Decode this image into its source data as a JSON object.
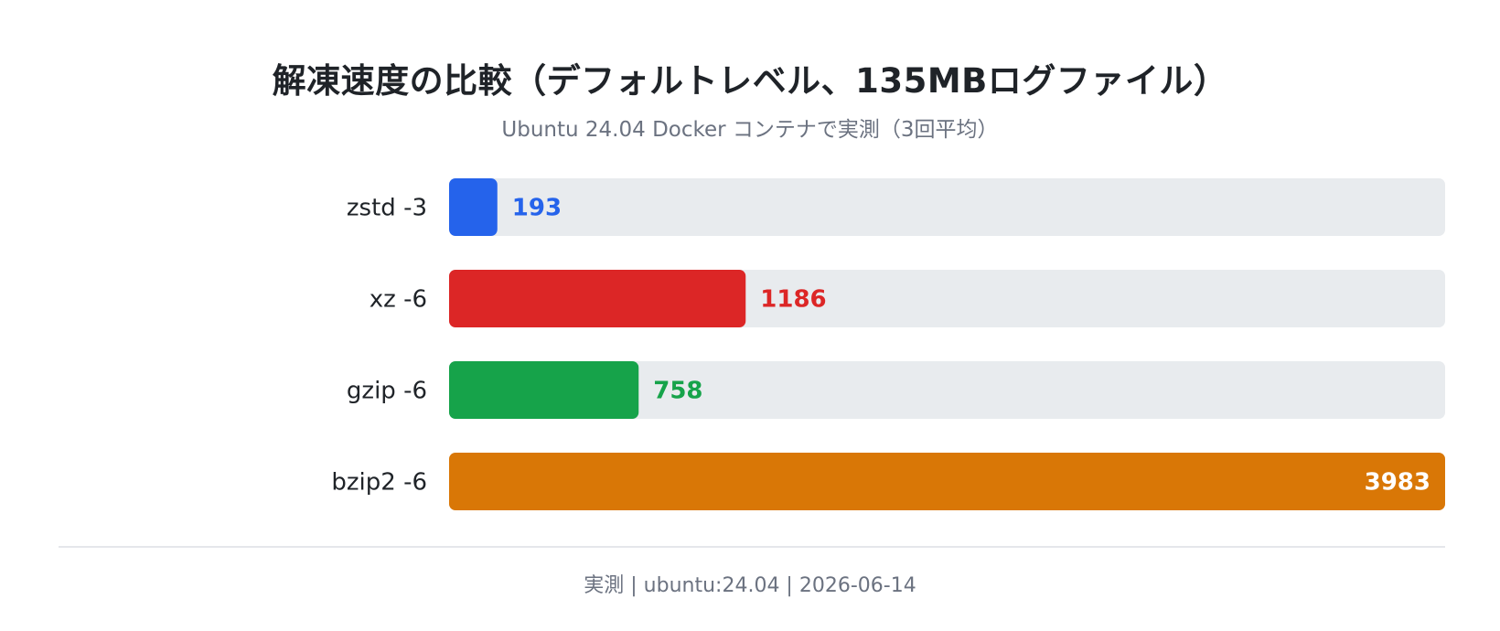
{
  "title": "解凍速度の比較（デフォルトレベル、135MBログファイル）",
  "subtitle": "Ubuntu 24.04 Docker コンテナで実測（3回平均）",
  "footer": "実測 | ubuntu:24.04 | 2026-06-14",
  "chart_data": {
    "type": "bar",
    "orientation": "horizontal",
    "title": "解凍速度の比較（デフォルトレベル、135MBログファイル）",
    "subtitle": "Ubuntu 24.04 Docker コンテナで実測（3回平均）",
    "categories": [
      "zstd -3",
      "xz -6",
      "gzip -6",
      "bzip2 -6"
    ],
    "values": [
      193,
      1186,
      758,
      3983
    ],
    "colors": [
      "#2563eb",
      "#dc2626",
      "#16a34a",
      "#d97706"
    ],
    "track_color": "#e8ebee",
    "xlim": [
      0,
      3983
    ],
    "grid": false,
    "legend": "none",
    "xlabel": "",
    "ylabel": ""
  }
}
